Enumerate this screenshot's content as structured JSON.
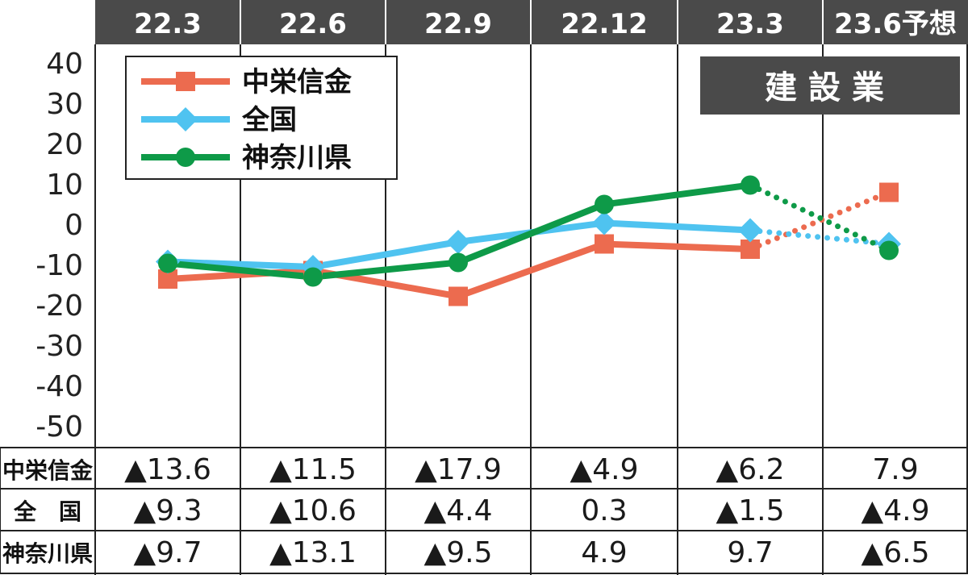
{
  "badge": "建設業",
  "chart_data": {
    "type": "line",
    "title": "",
    "x": [
      "22.3",
      "22.6",
      "22.9",
      "22.12",
      "23.3",
      "23.6予想"
    ],
    "ylim": [
      -50,
      40
    ],
    "yticks": [
      "40",
      "30",
      "20",
      "10",
      "0",
      "-10",
      "-20",
      "-30",
      "-40",
      "-50"
    ],
    "grid": "vertical lines between periods",
    "legend": "top-left",
    "forecast_from_index": 4,
    "forecast_style": "dotted",
    "series": [
      {
        "name": "中栄信金",
        "values": [
          -13.6,
          -11.5,
          -17.9,
          -4.9,
          -6.2,
          7.9
        ],
        "color": "#ec6b4f",
        "marker": "square"
      },
      {
        "name": "全国",
        "values": [
          -9.3,
          -10.6,
          -4.4,
          0.3,
          -1.5,
          -4.9
        ],
        "color": "#4fc3f0",
        "marker": "diamond"
      },
      {
        "name": "神奈川県",
        "values": [
          -9.7,
          -13.1,
          -9.5,
          4.9,
          9.7,
          -6.5
        ],
        "color": "#0e9a48",
        "marker": "circle"
      }
    ],
    "table": {
      "row_labels": [
        "中栄信金",
        "全　国",
        "神奈川県"
      ],
      "rows": [
        [
          "▲13.6",
          "▲11.5",
          "▲17.9",
          "▲4.9",
          "▲6.2",
          "7.9"
        ],
        [
          "▲9.3",
          "▲10.6",
          "▲4.4",
          "0.3",
          "▲1.5",
          "▲4.9"
        ],
        [
          "▲9.7",
          "▲13.1",
          "▲9.5",
          "4.9",
          "9.7",
          "▲6.5"
        ]
      ]
    }
  }
}
